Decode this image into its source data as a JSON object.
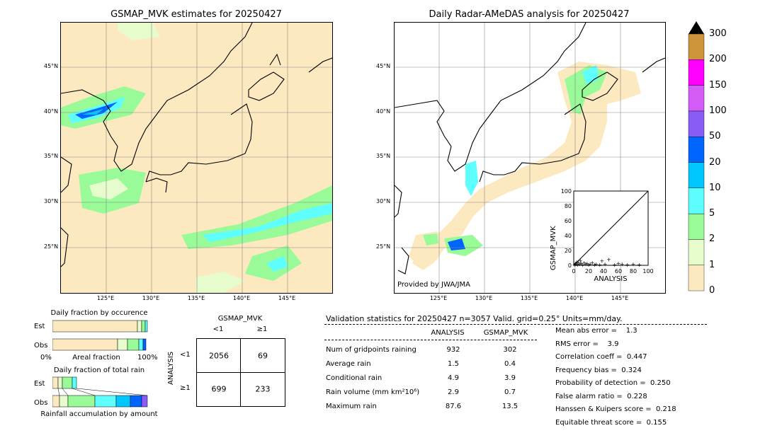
{
  "left_map": {
    "title": "GSMAP_MVK estimates for 20250427",
    "lat_labels": [
      "45°N",
      "40°N",
      "35°N",
      "30°N",
      "25°N"
    ],
    "lon_labels": [
      "125°E",
      "130°E",
      "135°E",
      "140°E",
      "145°E"
    ]
  },
  "right_map": {
    "title": "Daily Radar-AMeDAS analysis for 20250427",
    "lat_labels": [
      "45°N",
      "40°N",
      "35°N",
      "30°N",
      "25°N"
    ],
    "lon_labels": [
      "125°E",
      "130°E",
      "135°E",
      "140°E",
      "145°E"
    ],
    "credit": "Provided by JWA/JMA"
  },
  "colorbar": {
    "labels": [
      "0",
      "1",
      "2",
      "5",
      "10",
      "20",
      "50",
      "100",
      "150",
      "200",
      "300"
    ],
    "colors": [
      "#fde9c0",
      "#e6fccc",
      "#98fb98",
      "#5efefe",
      "#00c8ff",
      "#0064ff",
      "#8a5cf6",
      "#d45cf6",
      "#ff00ff",
      "#cd9439",
      "#000000"
    ]
  },
  "scatter": {
    "xlabel": "ANALYSIS",
    "ylabel": "GSMAP_MVK",
    "ticks": [
      "0",
      "20",
      "40",
      "60",
      "80",
      "100"
    ]
  },
  "occurrence": {
    "title": "Daily fraction by occurence",
    "row_est": "Est",
    "row_obs": "Obs",
    "axis_left": "0%",
    "axis_mid": "Areal fraction",
    "axis_right": "100%"
  },
  "total_rain": {
    "title": "Daily fraction of total rain",
    "row_est": "Est",
    "row_obs": "Obs",
    "footer": "Rainfall accumulation by amount"
  },
  "contingency": {
    "title": "GSMAP_MVK",
    "col_lt1": "<1",
    "col_ge1": "≥1",
    "row_lt1": "<1",
    "row_ge1": "≥1",
    "ylabel": "ANALYSIS",
    "c11": "2056",
    "c12": "69",
    "c21": "699",
    "c22": "233"
  },
  "validation": {
    "header": "Validation statistics for 20250427  n=3057 Valid. grid=0.25° Units=mm/day.",
    "col_analysis": "ANALYSIS",
    "col_gsmap": "GSMAP_MVK",
    "rows": [
      {
        "label": "Num of gridpoints raining",
        "analysis": "932",
        "gsmap": "302"
      },
      {
        "label": "Average rain",
        "analysis": "1.5",
        "gsmap": "0.4"
      },
      {
        "label": "Conditional rain",
        "analysis": "4.9",
        "gsmap": "3.9"
      },
      {
        "label": "Rain volume (mm km²10⁶)",
        "analysis": "2.9",
        "gsmap": "0.7"
      },
      {
        "label": "Maximum rain",
        "analysis": "87.6",
        "gsmap": "13.5"
      }
    ],
    "scores": [
      "Mean abs error =    1.3",
      "RMS error =    3.9",
      "Correlation coeff =  0.447",
      "Frequency bias =  0.324",
      "Probability of detection =  0.250",
      "False alarm ratio =  0.228",
      "Hanssen & Kuipers score =  0.218",
      "Equitable threat score =  0.155"
    ]
  },
  "chart_data": [
    {
      "type": "scatter",
      "title": "",
      "xlabel": "ANALYSIS",
      "ylabel": "GSMAP_MVK",
      "xlim": [
        0,
        100
      ],
      "ylim": [
        0,
        100
      ],
      "points": [
        [
          1,
          1
        ],
        [
          2,
          3
        ],
        [
          3,
          2
        ],
        [
          4,
          5
        ],
        [
          5,
          1
        ],
        [
          6,
          4
        ],
        [
          8,
          2
        ],
        [
          9,
          6
        ],
        [
          10,
          3
        ],
        [
          12,
          1
        ],
        [
          14,
          4
        ],
        [
          16,
          2
        ],
        [
          18,
          3
        ],
        [
          20,
          1
        ],
        [
          22,
          2
        ],
        [
          25,
          4
        ],
        [
          28,
          1
        ],
        [
          30,
          2
        ],
        [
          35,
          1
        ],
        [
          38,
          6
        ],
        [
          42,
          2
        ],
        [
          47,
          8
        ],
        [
          55,
          1
        ],
        [
          60,
          3
        ],
        [
          65,
          2
        ],
        [
          72,
          1
        ],
        [
          80,
          2
        ],
        [
          88,
          1
        ]
      ]
    },
    {
      "type": "table",
      "title": "Validation statistics for 20250427  n=3057 Valid. grid=0.25° Units=mm/day.",
      "columns": [
        "",
        "ANALYSIS",
        "GSMAP_MVK"
      ],
      "rows": [
        [
          "Num of gridpoints raining",
          932,
          302
        ],
        [
          "Average rain",
          1.5,
          0.4
        ],
        [
          "Conditional rain",
          4.9,
          3.9
        ],
        [
          "Rain volume (mm km²10⁶)",
          2.9,
          0.7
        ],
        [
          "Maximum rain",
          87.6,
          13.5
        ]
      ]
    }
  ]
}
